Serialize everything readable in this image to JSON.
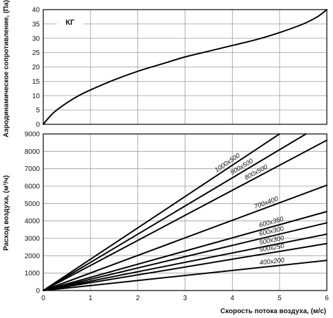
{
  "chart_data": [
    {
      "type": "line",
      "title": "",
      "ylabel": "Аэродинамическое сопротивление, (Па)",
      "xlabel": "",
      "xlim": [
        0,
        6
      ],
      "ylim": [
        0,
        40
      ],
      "x_ticks": [
        "0",
        "1",
        "2",
        "3",
        "4",
        "5",
        "6"
      ],
      "y_ticks": [
        "0",
        "5",
        "10",
        "15",
        "20",
        "25",
        "30",
        "35",
        "40"
      ],
      "grid": true,
      "annotation": "КГ",
      "series": [
        {
          "name": "",
          "x": [
            0,
            0.1,
            0.25,
            0.5,
            0.75,
            1,
            1.5,
            2,
            2.5,
            3,
            3.5,
            4,
            4.5,
            5,
            5.5,
            5.8,
            6
          ],
          "y": [
            0,
            2,
            4.5,
            7.5,
            10,
            12,
            15.5,
            18.5,
            21,
            23.5,
            25.5,
            27.5,
            29.5,
            32,
            35,
            37.5,
            40
          ]
        }
      ]
    },
    {
      "type": "line",
      "title": "",
      "ylabel": "Расход воздуха, (м³/ч)",
      "xlabel": "Скорость потока воздуха, (м/с)",
      "xlim": [
        0,
        6
      ],
      "ylim": [
        0,
        9000
      ],
      "x_ticks": [
        "0",
        "1",
        "2",
        "3",
        "4",
        "5",
        "6"
      ],
      "y_ticks": [
        "0",
        "1000",
        "2000",
        "3000",
        "4000",
        "5000",
        "6000",
        "7000",
        "8000",
        "9000"
      ],
      "grid": true,
      "series": [
        {
          "name": "1000x500",
          "x": [
            0,
            5
          ],
          "y": [
            0,
            9000
          ]
        },
        {
          "name": "900x500",
          "x": [
            0,
            5.56
          ],
          "y": [
            0,
            9000
          ]
        },
        {
          "name": "800x500",
          "x": [
            0,
            6
          ],
          "y": [
            0,
            8640
          ]
        },
        {
          "name": "700x400",
          "x": [
            0,
            6
          ],
          "y": [
            0,
            6050
          ]
        },
        {
          "name": "600x350",
          "x": [
            0,
            6
          ],
          "y": [
            0,
            4540
          ]
        },
        {
          "name": "600x300",
          "x": [
            0,
            6
          ],
          "y": [
            0,
            3890
          ]
        },
        {
          "name": "500x300",
          "x": [
            0,
            6
          ],
          "y": [
            0,
            3240
          ]
        },
        {
          "name": "500x250",
          "x": [
            0,
            6
          ],
          "y": [
            0,
            2700
          ]
        },
        {
          "name": "400x200",
          "x": [
            0,
            6
          ],
          "y": [
            0,
            1730
          ]
        }
      ]
    }
  ]
}
